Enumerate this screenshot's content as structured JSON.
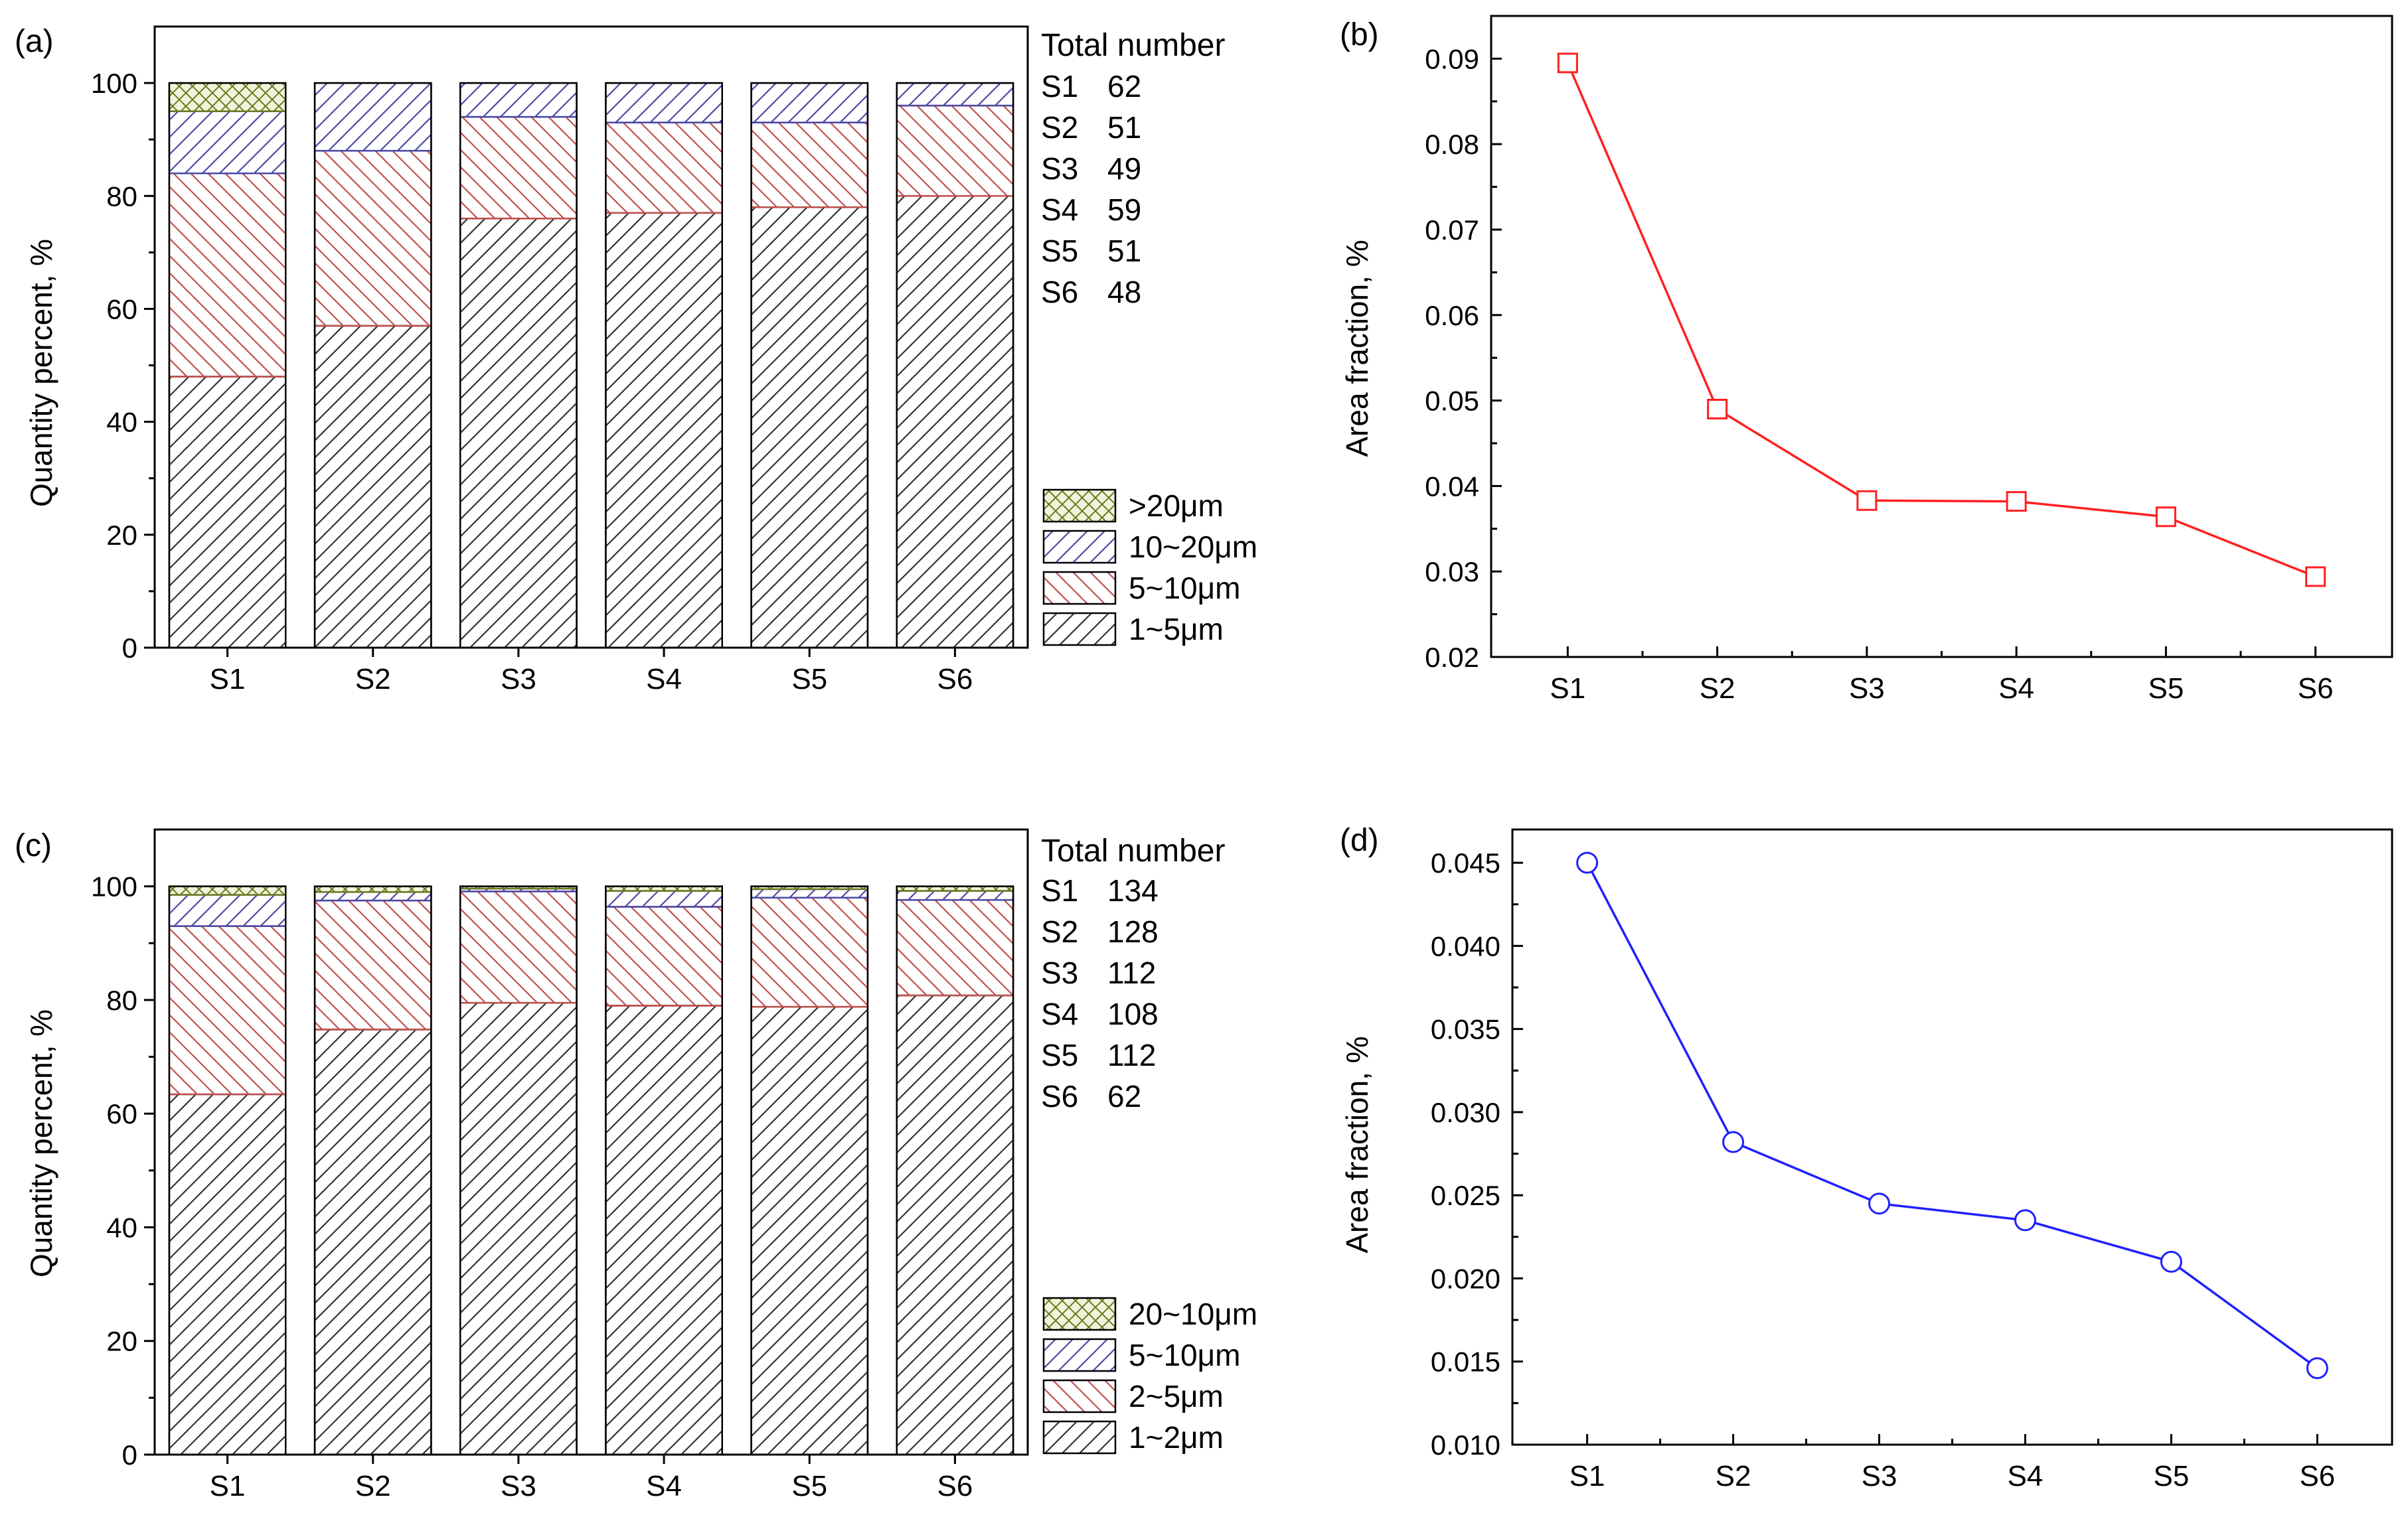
{
  "chart_data": [
    {
      "panel": "(a)",
      "type": "bar",
      "stacked": true,
      "categories": [
        "S1",
        "S2",
        "S3",
        "S4",
        "S5",
        "S6"
      ],
      "ylabel": "Quantity percent, %",
      "xlabel": "",
      "ylim": [
        0,
        110
      ],
      "yticks": [
        0,
        20,
        40,
        60,
        80,
        100
      ],
      "series": [
        {
          "name": "1~5μm",
          "values": [
            48,
            57,
            76,
            77,
            78,
            80
          ],
          "color": "#333333"
        },
        {
          "name": "5~10μm",
          "values": [
            36,
            31,
            18,
            16,
            15,
            16
          ],
          "color": "#c0504d"
        },
        {
          "name": "10~20μm",
          "values": [
            11,
            12,
            6,
            7,
            7,
            4
          ],
          "color": "#4a4aa8"
        },
        {
          "name": ">20μm",
          "values": [
            5,
            0,
            0,
            0,
            0,
            0
          ],
          "color": "#6b7a1e"
        }
      ],
      "legend_order": [
        ">20μm",
        "10~20μm",
        "5~10μm",
        "1~5μm"
      ],
      "annotation": {
        "title": "Total number",
        "rows": [
          {
            "label": "S1",
            "value": "62"
          },
          {
            "label": "S2",
            "value": "51"
          },
          {
            "label": "S3",
            "value": "49"
          },
          {
            "label": "S4",
            "value": "59"
          },
          {
            "label": "S5",
            "value": "51"
          },
          {
            "label": "S6",
            "value": "48"
          }
        ]
      }
    },
    {
      "panel": "(b)",
      "type": "line",
      "categories": [
        "S1",
        "S2",
        "S3",
        "S4",
        "S5",
        "S6"
      ],
      "values": [
        0.0895,
        0.049,
        0.0383,
        0.0382,
        0.0364,
        0.0294
      ],
      "ylabel": "Area fraction, %",
      "xlabel": "",
      "ylim": [
        0.02,
        0.095
      ],
      "yticks": [
        "0.02",
        "0.03",
        "0.04",
        "0.05",
        "0.06",
        "0.07",
        "0.08",
        "0.09"
      ],
      "marker": "square",
      "color": "#ff2020"
    },
    {
      "panel": "(c)",
      "type": "bar",
      "stacked": true,
      "categories": [
        "S1",
        "S2",
        "S3",
        "S4",
        "S5",
        "S6"
      ],
      "ylabel": "Quantity percent, %",
      "xlabel": "",
      "ylim": [
        0,
        110
      ],
      "yticks": [
        0,
        20,
        40,
        60,
        80,
        100
      ],
      "series": [
        {
          "name": "1~2μm",
          "values": [
            63.4,
            74.8,
            79.5,
            79,
            78.8,
            80.8
          ],
          "color": "#333333"
        },
        {
          "name": "2~5μm",
          "values": [
            29.6,
            22.7,
            19.6,
            17.4,
            19.2,
            16.8
          ],
          "color": "#c0504d"
        },
        {
          "name": "5~10μm",
          "values": [
            5.5,
            1.5,
            0.5,
            2.8,
            1.5,
            1.6
          ],
          "color": "#4a4aa8"
        },
        {
          "name": "20~10μm",
          "values": [
            1.5,
            1,
            0.4,
            0.8,
            0.5,
            0.8
          ],
          "color": "#6b7a1e"
        }
      ],
      "legend_order": [
        "20~10μm",
        "5~10μm",
        "2~5μm",
        "1~2μm"
      ],
      "annotation": {
        "title": "Total number",
        "rows": [
          {
            "label": "S1",
            "value": "134"
          },
          {
            "label": "S2",
            "value": "128"
          },
          {
            "label": "S3",
            "value": "112"
          },
          {
            "label": "S4",
            "value": "108"
          },
          {
            "label": "S5",
            "value": "112"
          },
          {
            "label": "S6",
            "value": "62"
          }
        ]
      }
    },
    {
      "panel": "(d)",
      "type": "line",
      "categories": [
        "S1",
        "S2",
        "S3",
        "S4",
        "S5",
        "S6"
      ],
      "values": [
        0.045,
        0.0282,
        0.0245,
        0.0235,
        0.021,
        0.0146
      ],
      "ylabel": "Area fraction, %",
      "xlabel": "",
      "ylim": [
        0.01,
        0.047
      ],
      "yticks": [
        "0.010",
        "0.015",
        "0.020",
        "0.025",
        "0.030",
        "0.035",
        "0.040",
        "0.045"
      ],
      "marker": "circle",
      "color": "#2020ff"
    }
  ]
}
